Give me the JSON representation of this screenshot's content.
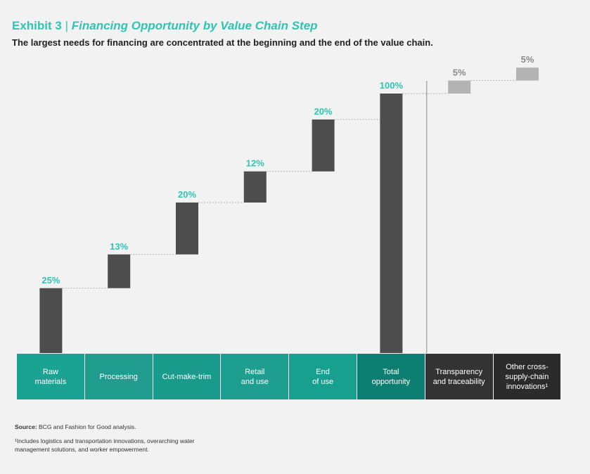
{
  "header": {
    "exhibit_label": "Exhibit 3",
    "separator": "|",
    "title": "Financing Opportunity by Value Chain Step",
    "subtitle": "The largest needs for financing are concentrated at the beginning and the end of the value chain."
  },
  "colors": {
    "teal": "#2fc4b2",
    "dark_bar": "#4d4d4d",
    "light_bar": "#b3b3b3",
    "divider": "#888888"
  },
  "chart_data": {
    "type": "bar",
    "subtype": "waterfall",
    "categories": [
      "Raw materials",
      "Processing",
      "Cut-make-trim",
      "Retail and use",
      "End of use",
      "Total opportunity",
      "Transparency and traceability",
      "Other cross-supply-chain innovations"
    ],
    "values": [
      25,
      13,
      20,
      12,
      20,
      100,
      5,
      5
    ],
    "value_labels": [
      "25%",
      "13%",
      "20%",
      "12%",
      "20%",
      "100%",
      "5%",
      "5%"
    ],
    "ylim": [
      0,
      100
    ],
    "grid": false,
    "legend": "none"
  },
  "category_boxes": [
    {
      "label": "Raw\nmaterials",
      "color": "#1aa393"
    },
    {
      "label": "Processing",
      "color": "#1f9c8e"
    },
    {
      "label": "Cut-make-trim",
      "color": "#199a8b"
    },
    {
      "label": "Retail\nand use",
      "color": "#1d9e90"
    },
    {
      "label": "End\nof use",
      "color": "#17a090"
    },
    {
      "label": "Total\nopportunity",
      "color": "#0d7f72"
    },
    {
      "label": "Transparency\nand traceability",
      "color": "#333333"
    },
    {
      "label": "Other cross-\nsupply-chain\ninnovations¹",
      "color": "#2b2b2b"
    }
  ],
  "source": {
    "label": "Source:",
    "text": " BCG and Fashion for Good analysis."
  },
  "footnote": "¹Includes logistics and transportation innovations, overarching water management solutions, and worker empowerment."
}
